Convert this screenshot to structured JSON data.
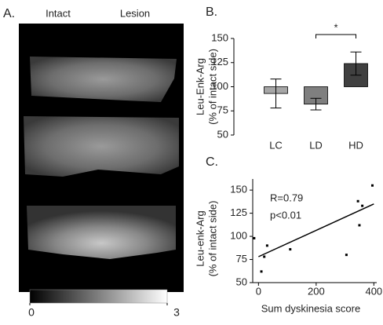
{
  "chart_data": [
    {
      "type": "image",
      "panel_label": "A.",
      "labels": [
        "Intact",
        "Lesion"
      ],
      "colorbar": {
        "lim": [
          0,
          3
        ],
        "ticks": [
          0,
          3
        ]
      }
    },
    {
      "type": "bar",
      "panel_label": "B.",
      "ylabel": [
        "Leu-Enk-Arg",
        "(% of intact side)"
      ],
      "categories": [
        "LC",
        "LD",
        "HD"
      ],
      "values": [
        93,
        82,
        124
      ],
      "errors": [
        15,
        6,
        12
      ],
      "colors": [
        "#a6a6a6",
        "#7f7f7f",
        "#404040"
      ],
      "bar_base": 100,
      "ylim": [
        50,
        150
      ],
      "yticks": [
        50,
        75,
        100,
        125,
        150
      ],
      "significance": "*"
    },
    {
      "type": "scatter",
      "panel_label": "C.",
      "ylabel": [
        "Leu-enk-Arg",
        "(% of intact side)"
      ],
      "xlabel": "Sum dyskinesia score",
      "annotations": [
        "R=0.79",
        "p<0.01"
      ],
      "x": [
        -15,
        10,
        20,
        30,
        110,
        305,
        345,
        350,
        360,
        395
      ],
      "y": [
        98,
        62,
        78,
        90,
        86,
        80,
        138,
        112,
        133,
        155
      ],
      "fit": {
        "x": [
          0,
          400
        ],
        "y": [
          78,
          135
        ]
      },
      "xlim": [
        -20,
        410
      ],
      "ylim": [
        50,
        162
      ],
      "xticks": [
        0,
        200,
        400
      ],
      "yticks": [
        50,
        75,
        100,
        125,
        150
      ]
    }
  ]
}
